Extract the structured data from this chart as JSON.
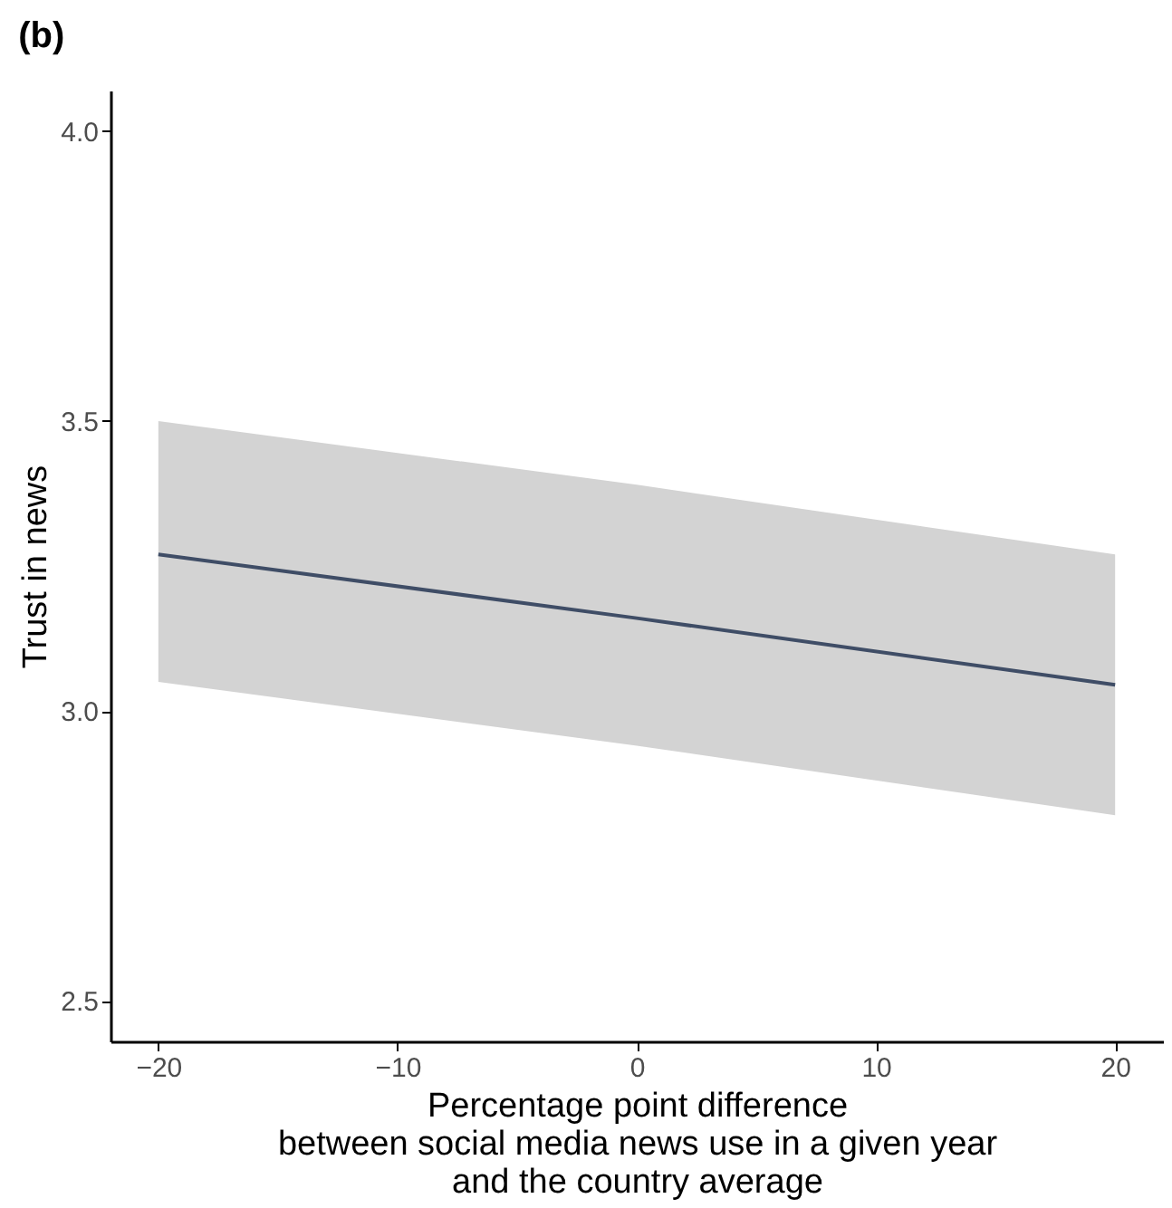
{
  "chart_data": {
    "type": "line",
    "title": "(b)",
    "xlabel": "Percentage point difference\nbetween social media news use in a given year\nand the country average",
    "ylabel": "Trust in news",
    "x": [
      -20,
      0,
      20
    ],
    "series": [
      {
        "color": "#3f4d66",
        "values": [
          3.27,
          3.16,
          3.045
        ],
        "lower": [
          3.05,
          2.94,
          2.82
        ],
        "upper": [
          3.5,
          3.39,
          3.27
        ]
      }
    ],
    "xlim": [
      -22,
      22
    ],
    "ylim": [
      2.43,
      4.07
    ],
    "xticks": [
      -20,
      -10,
      0,
      10,
      20
    ],
    "yticks": [
      {
        "value": 2.5,
        "label": "2.5"
      },
      {
        "value": 3,
        "label": "3.0"
      },
      {
        "value": 3.5,
        "label": "3.5"
      },
      {
        "value": 4,
        "label": "4.0"
      }
    ],
    "grid": false
  }
}
